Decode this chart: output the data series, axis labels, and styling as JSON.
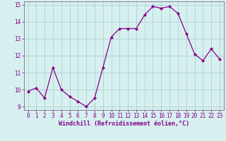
{
  "x": [
    0,
    1,
    2,
    3,
    4,
    5,
    6,
    7,
    8,
    9,
    10,
    11,
    12,
    13,
    14,
    15,
    16,
    17,
    18,
    19,
    20,
    21,
    22,
    23
  ],
  "y": [
    9.9,
    10.1,
    9.5,
    11.3,
    10.0,
    9.6,
    9.3,
    9.0,
    9.5,
    11.3,
    13.1,
    13.6,
    13.6,
    13.6,
    14.4,
    14.9,
    14.8,
    14.9,
    14.5,
    13.3,
    12.1,
    11.7,
    12.4,
    11.8
  ],
  "line_color": "#880088",
  "marker": "D",
  "marker_size": 2.2,
  "bg_color": "#d6f0f0",
  "grid_color": "#aac8c8",
  "xlabel": "Windchill (Refroidissement éolien,°C)",
  "ylim": [
    8.8,
    15.2
  ],
  "xlim": [
    -0.5,
    23.5
  ],
  "yticks": [
    9,
    10,
    11,
    12,
    13,
    14,
    15
  ],
  "xticks": [
    0,
    1,
    2,
    3,
    4,
    5,
    6,
    7,
    8,
    9,
    10,
    11,
    12,
    13,
    14,
    15,
    16,
    17,
    18,
    19,
    20,
    21,
    22,
    23
  ],
  "tick_fontsize": 5.5,
  "xlabel_fontsize": 6.0,
  "spine_color": "#886688"
}
